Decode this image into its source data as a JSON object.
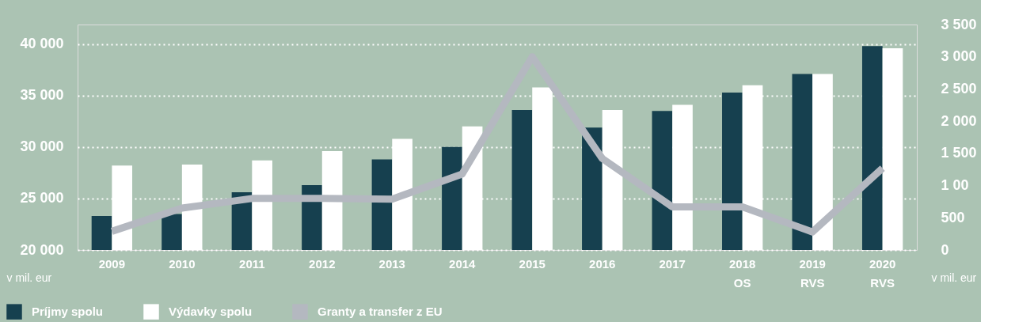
{
  "chart_data": {
    "type": "bar",
    "categories": [
      "2009",
      "2010",
      "2011",
      "2012",
      "2013",
      "2014",
      "2015",
      "2016",
      "2017",
      "2018 OS",
      "2019 RVS",
      "2020 RVS"
    ],
    "series": [
      {
        "name": "Príjmy spolu",
        "color": "#16404f",
        "values": [
          23300,
          23500,
          25600,
          26300,
          28800,
          30000,
          33600,
          31900,
          33500,
          35300,
          37100,
          39800
        ]
      },
      {
        "name": "Výdavky spolu",
        "color": "#ffffff",
        "values": [
          28200,
          28300,
          28700,
          29600,
          30800,
          32000,
          35800,
          33600,
          34100,
          36000,
          37100,
          39600
        ]
      },
      {
        "name": "Granty a transfer z EU",
        "type": "line",
        "axis": "y2",
        "color": "#b4b8c0",
        "values": [
          290,
          650,
          800,
          800,
          790,
          1180,
          3000,
          1420,
          670,
          670,
          280,
          1270
        ]
      }
    ],
    "ylabel": "v mil. eur",
    "y2label": "v mil. eur",
    "ylim": [
      20000,
      41900
    ],
    "yticks": [
      {
        "value": 20000,
        "label": "20 000"
      },
      {
        "value": 25000,
        "label": "25 000"
      },
      {
        "value": 30000,
        "label": "30 000"
      },
      {
        "value": 35000,
        "label": "35 000"
      },
      {
        "value": 40000,
        "label": "40 000"
      }
    ],
    "y2lim": [
      0,
      3500
    ],
    "y2ticks": [
      0,
      500,
      {
        "value": 1000,
        "label": "1 00"
      },
      {
        "value": 1500,
        "label": "1 500"
      },
      {
        "value": 2000,
        "label": "2 000"
      },
      {
        "value": 2500,
        "label": "2 500"
      },
      {
        "value": 3000,
        "label": "3 000"
      },
      {
        "value": 3500,
        "label": "3 500"
      }
    ],
    "grid": "y",
    "legend": "bottom left",
    "marker": "none",
    "line_style": "solid"
  }
}
